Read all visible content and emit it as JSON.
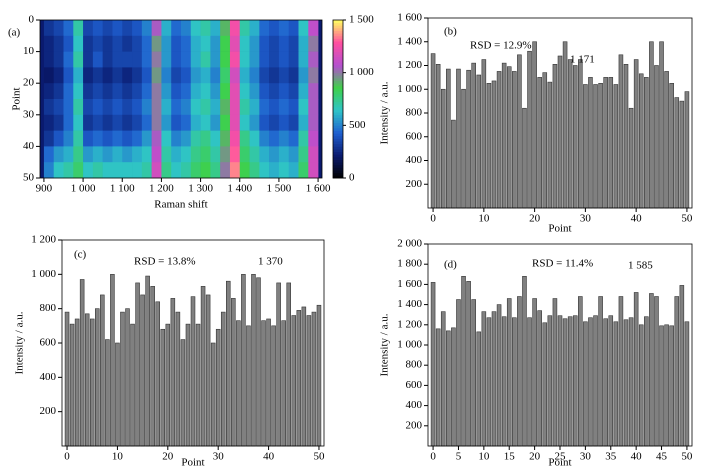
{
  "chart_data": [
    {
      "type": "heatmap",
      "panel_label": "(a)",
      "x_label": "Raman shift",
      "y_label": "Point",
      "x_edges": [
        900,
        925,
        950,
        975,
        1000,
        1025,
        1050,
        1075,
        1100,
        1125,
        1150,
        1175,
        1200,
        1225,
        1250,
        1275,
        1300,
        1325,
        1350,
        1375,
        1400,
        1425,
        1450,
        1475,
        1500,
        1525,
        1550,
        1575,
        1600
      ],
      "y_edges": [
        0,
        5,
        10,
        15,
        20,
        25,
        30,
        35,
        40,
        45,
        50
      ],
      "z": [
        [
          300,
          350,
          450,
          700,
          350,
          400,
          350,
          400,
          350,
          400,
          500,
          1050,
          600,
          450,
          500,
          650,
          700,
          600,
          900,
          1250,
          700,
          600,
          450,
          400,
          450,
          400,
          650,
          1100
        ],
        [
          250,
          300,
          400,
          650,
          300,
          350,
          300,
          350,
          300,
          350,
          450,
          950,
          550,
          400,
          450,
          600,
          650,
          550,
          850,
          1200,
          650,
          550,
          400,
          350,
          400,
          350,
          600,
          1000
        ],
        [
          250,
          300,
          450,
          700,
          300,
          400,
          300,
          350,
          350,
          350,
          450,
          1000,
          550,
          400,
          450,
          600,
          700,
          550,
          850,
          1250,
          650,
          550,
          400,
          350,
          400,
          350,
          600,
          1050
        ],
        [
          200,
          250,
          400,
          600,
          250,
          300,
          250,
          300,
          250,
          300,
          400,
          950,
          500,
          350,
          400,
          550,
          600,
          500,
          800,
          1150,
          600,
          500,
          350,
          300,
          350,
          300,
          550,
          1000
        ],
        [
          250,
          300,
          450,
          650,
          300,
          350,
          300,
          350,
          300,
          350,
          450,
          1000,
          550,
          400,
          450,
          600,
          650,
          550,
          850,
          1200,
          650,
          550,
          400,
          350,
          400,
          350,
          600,
          1050
        ],
        [
          300,
          350,
          450,
          700,
          350,
          400,
          350,
          400,
          350,
          400,
          500,
          1000,
          600,
          450,
          500,
          650,
          700,
          600,
          900,
          1200,
          700,
          600,
          450,
          400,
          450,
          400,
          650,
          1050
        ],
        [
          250,
          300,
          450,
          650,
          300,
          350,
          300,
          350,
          300,
          350,
          450,
          1000,
          550,
          400,
          450,
          600,
          650,
          550,
          850,
          1200,
          650,
          550,
          400,
          350,
          400,
          350,
          600,
          1050
        ],
        [
          300,
          400,
          500,
          700,
          400,
          450,
          400,
          450,
          400,
          450,
          550,
          1050,
          650,
          500,
          550,
          700,
          750,
          650,
          900,
          1250,
          750,
          650,
          500,
          450,
          500,
          450,
          700,
          1100
        ],
        [
          450,
          550,
          600,
          750,
          550,
          600,
          550,
          600,
          550,
          600,
          650,
          1100,
          700,
          600,
          650,
          750,
          800,
          700,
          950,
          1300,
          800,
          700,
          600,
          550,
          600,
          550,
          750,
          1150
        ],
        [
          500,
          650,
          700,
          800,
          650,
          700,
          650,
          650,
          650,
          650,
          700,
          1150,
          750,
          650,
          700,
          800,
          850,
          750,
          1000,
          1350,
          850,
          750,
          650,
          600,
          650,
          600,
          800,
          1150
        ]
      ],
      "xlim": [
        890,
        1610
      ],
      "ylim": [
        0,
        50
      ],
      "xticks": [
        900,
        {
          "value": 1000,
          "label": "1 000"
        },
        {
          "value": 1100,
          "label": "1 100"
        },
        {
          "value": 1200,
          "label": "1 200"
        },
        {
          "value": 1300,
          "label": "1 300"
        },
        {
          "value": 1400,
          "label": "1 400"
        },
        {
          "value": 1500,
          "label": "1 500"
        },
        {
          "value": 1600,
          "label": "1 600"
        }
      ],
      "yticks": [
        0,
        10,
        20,
        30,
        40,
        50
      ],
      "zlim": [
        0,
        1500
      ],
      "zticks": [
        0,
        500,
        {
          "value": 1000,
          "label": "1 000"
        },
        {
          "value": 1500,
          "label": "1 500"
        }
      ],
      "colormap": [
        "#000000",
        "#0a1a6e",
        "#1f5fd0",
        "#2ec4c8",
        "#3fd04a",
        "#b54fd0",
        "#ff4fa0",
        "#ffff60"
      ]
    },
    {
      "type": "bar",
      "panel_label": "(b)",
      "annotations": [
        "RSD = 12.9%",
        "1 171"
      ],
      "x_label": "Point",
      "y_label": "Intensity / a.u.",
      "color": "#808080",
      "x": [
        0,
        1,
        2,
        3,
        4,
        5,
        6,
        7,
        8,
        9,
        10,
        11,
        12,
        13,
        14,
        15,
        16,
        17,
        18,
        19,
        20,
        21,
        22,
        23,
        24,
        25,
        26,
        27,
        28,
        29,
        30,
        31,
        32,
        33,
        34,
        35,
        36,
        37,
        38,
        39,
        40,
        41,
        42,
        43,
        44,
        45,
        46,
        47,
        48,
        49,
        50
      ],
      "values": [
        1300,
        1210,
        1000,
        1170,
        740,
        1170,
        1000,
        1160,
        1220,
        1120,
        1250,
        1050,
        1070,
        1150,
        1220,
        1190,
        1150,
        1290,
        840,
        1320,
        1400,
        1100,
        1140,
        1060,
        1210,
        1280,
        1400,
        1250,
        1200,
        1250,
        1040,
        1100,
        1040,
        1050,
        1100,
        1100,
        1040,
        1290,
        1210,
        840,
        1250,
        1130,
        1100,
        1400,
        1200,
        1400,
        1150,
        1050,
        930,
        900,
        980
      ],
      "xlim": [
        -1,
        51
      ],
      "ylim": [
        0,
        1600
      ],
      "xticks": [
        0,
        10,
        20,
        30,
        40,
        50
      ],
      "yticks": [
        200,
        400,
        600,
        800,
        {
          "value": 1000,
          "label": "1 000"
        },
        {
          "value": 1200,
          "label": "1 200"
        },
        {
          "value": 1400,
          "label": "1 400"
        },
        {
          "value": 1600,
          "label": "1 600"
        }
      ]
    },
    {
      "type": "bar",
      "panel_label": "(c)",
      "annotations": [
        "RSD = 13.8%",
        "1 370"
      ],
      "x_label": "Point",
      "y_label": "Intensity / a.u.",
      "color": "#808080",
      "x": [
        0,
        1,
        2,
        3,
        4,
        5,
        6,
        7,
        8,
        9,
        10,
        11,
        12,
        13,
        14,
        15,
        16,
        17,
        18,
        19,
        20,
        21,
        22,
        23,
        24,
        25,
        26,
        27,
        28,
        29,
        30,
        31,
        32,
        33,
        34,
        35,
        36,
        37,
        38,
        39,
        40,
        41,
        42,
        43,
        44,
        45,
        46,
        47,
        48,
        49,
        50
      ],
      "values": [
        780,
        710,
        740,
        970,
        770,
        740,
        800,
        880,
        620,
        1000,
        600,
        780,
        800,
        710,
        950,
        880,
        990,
        930,
        840,
        680,
        710,
        860,
        780,
        620,
        710,
        870,
        710,
        930,
        880,
        600,
        680,
        780,
        960,
        860,
        730,
        1000,
        700,
        1000,
        980,
        730,
        740,
        700,
        950,
        730,
        950,
        760,
        790,
        810,
        760,
        780,
        820
      ],
      "xlim": [
        -1,
        51
      ],
      "ylim": [
        0,
        1200
      ],
      "xticks": [
        0,
        10,
        20,
        30,
        40,
        50
      ],
      "yticks": [
        200,
        400,
        600,
        800,
        {
          "value": 1000,
          "label": "1 000"
        },
        {
          "value": 1200,
          "label": "1 200"
        }
      ]
    },
    {
      "type": "bar",
      "panel_label": "(d)",
      "annotations": [
        "RSD = 11.4%",
        "1 585"
      ],
      "x_label": "Point",
      "y_label": "Intensity / a.u.",
      "color": "#808080",
      "x": [
        0,
        1,
        2,
        3,
        4,
        5,
        6,
        7,
        8,
        9,
        10,
        11,
        12,
        13,
        14,
        15,
        16,
        17,
        18,
        19,
        20,
        21,
        22,
        23,
        24,
        25,
        26,
        27,
        28,
        29,
        30,
        31,
        32,
        33,
        34,
        35,
        36,
        37,
        38,
        39,
        40,
        41,
        42,
        43,
        44,
        45,
        46,
        47,
        48,
        49,
        50
      ],
      "values": [
        1620,
        1160,
        1330,
        1140,
        1170,
        1450,
        1680,
        1630,
        1450,
        1130,
        1330,
        1270,
        1330,
        1400,
        1280,
        1460,
        1270,
        1480,
        1680,
        1270,
        1460,
        1340,
        1220,
        1290,
        1460,
        1290,
        1260,
        1280,
        1290,
        1480,
        1230,
        1270,
        1290,
        1480,
        1260,
        1290,
        1230,
        1480,
        1250,
        1270,
        1520,
        1200,
        1280,
        1510,
        1480,
        1190,
        1200,
        1190,
        1480,
        1590,
        1230
      ],
      "xlim": [
        -1,
        51
      ],
      "ylim": [
        0,
        2000
      ],
      "xticks": [
        0,
        5,
        10,
        15,
        20,
        25,
        30,
        35,
        40,
        45,
        50
      ],
      "yticks": [
        200,
        400,
        600,
        800,
        {
          "value": 1000,
          "label": "1 000"
        },
        {
          "value": 1200,
          "label": "1 200"
        },
        {
          "value": 1400,
          "label": "1 400"
        },
        {
          "value": 1600,
          "label": "1 600"
        },
        {
          "value": 1800,
          "label": "1 800"
        },
        {
          "value": 2000,
          "label": "2 000"
        }
      ]
    }
  ]
}
